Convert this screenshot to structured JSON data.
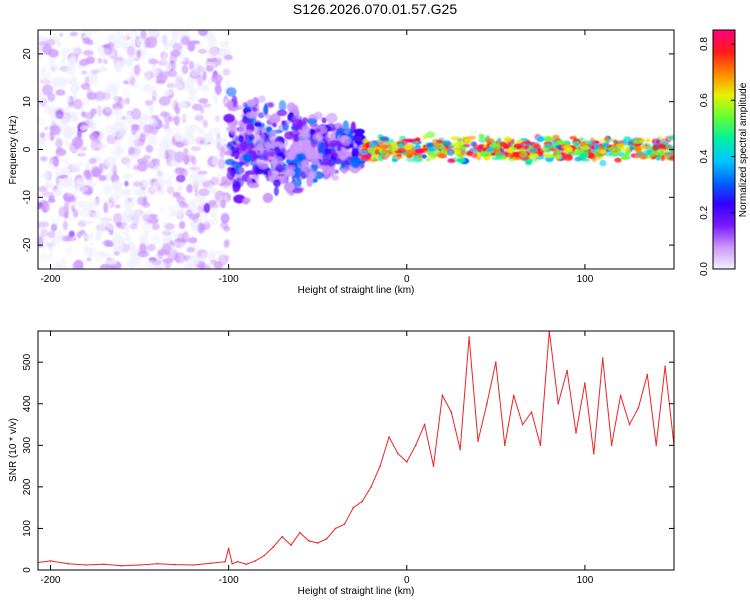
{
  "figure_title": "S126.2026.070.01.57.G25",
  "colors": {
    "snr_line": "#ee2222",
    "colormap": [
      "#f0f0ff",
      "#cc99ff",
      "#7a1aff",
      "#3300ff",
      "#0066ff",
      "#00c8ff",
      "#00f0a0",
      "#66ff33",
      "#e8f000",
      "#ff8800",
      "#ff1a1a",
      "#ff0080"
    ]
  },
  "chart_data": [
    {
      "type": "heatmap",
      "title": "",
      "xlabel": "Height of straight line (km)",
      "ylabel": "Frequency (Hz)",
      "xlim": [
        -207,
        150
      ],
      "ylim": [
        -25,
        25
      ],
      "x_ticks": [
        -200,
        -100,
        0,
        100
      ],
      "x_tick_labels": [
        "-200",
        "-100",
        "0",
        "100"
      ],
      "y_ticks": [
        -20,
        -10,
        0,
        10,
        20
      ],
      "y_tick_labels": [
        "-20",
        "-10",
        "0",
        "10",
        "20"
      ],
      "colorbar": {
        "label": "Normalized spectral amplitude",
        "range": [
          0.0,
          0.85
        ],
        "ticks": [
          0.0,
          0.2,
          0.4,
          0.6,
          0.8
        ],
        "tick_labels": [
          "0.0",
          "0.2",
          "0.4",
          "0.6",
          "0.8"
        ]
      },
      "regions": [
        {
          "description": "broadband noise",
          "x_range": [
            -207,
            -100
          ],
          "freq_range": [
            -25,
            25
          ],
          "amplitude_range": [
            0.0,
            0.12
          ]
        },
        {
          "description": "scattered energy",
          "x_range": [
            -100,
            -25
          ],
          "freq_range": [
            -12,
            12
          ],
          "amplitude_range": [
            0.05,
            0.35
          ]
        },
        {
          "description": "narrow band signal",
          "x_range": [
            -25,
            150
          ],
          "freq_range": [
            -2,
            2
          ],
          "amplitude_range": [
            0.3,
            0.85
          ]
        }
      ]
    },
    {
      "type": "line",
      "title": "",
      "xlabel": "Height of straight line (km)",
      "ylabel": "SNR (10 * v/v)",
      "xlim": [
        -207,
        150
      ],
      "ylim": [
        0,
        575
      ],
      "x_ticks": [
        -200,
        -100,
        0,
        100
      ],
      "x_tick_labels": [
        "-200",
        "-100",
        "0",
        "100"
      ],
      "y_ticks": [
        0,
        100,
        200,
        300,
        400,
        500
      ],
      "y_tick_labels": [
        "0",
        "100",
        "200",
        "300",
        "400",
        "500"
      ],
      "series": [
        {
          "name": "SNR",
          "x": [
            -207,
            -200,
            -190,
            -180,
            -170,
            -160,
            -150,
            -140,
            -130,
            -120,
            -110,
            -102,
            -100,
            -98,
            -95,
            -90,
            -85,
            -80,
            -75,
            -70,
            -65,
            -60,
            -55,
            -50,
            -45,
            -40,
            -35,
            -30,
            -25,
            -20,
            -15,
            -10,
            -5,
            0,
            5,
            10,
            15,
            20,
            25,
            30,
            35,
            40,
            45,
            50,
            55,
            60,
            65,
            70,
            75,
            80,
            85,
            90,
            95,
            100,
            105,
            110,
            115,
            120,
            125,
            130,
            135,
            140,
            145,
            150
          ],
          "y": [
            18,
            22,
            15,
            12,
            14,
            10,
            12,
            15,
            13,
            12,
            16,
            20,
            52,
            15,
            20,
            14,
            22,
            35,
            55,
            80,
            60,
            90,
            70,
            65,
            75,
            100,
            110,
            150,
            165,
            200,
            250,
            320,
            280,
            260,
            300,
            350,
            250,
            420,
            380,
            290,
            560,
            310,
            400,
            500,
            300,
            420,
            350,
            380,
            300,
            575,
            400,
            480,
            330,
            450,
            280,
            510,
            300,
            420,
            350,
            390,
            470,
            300,
            490,
            300
          ]
        }
      ]
    }
  ]
}
